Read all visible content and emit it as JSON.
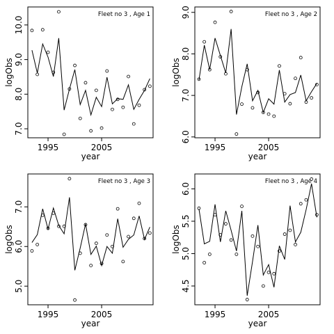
{
  "chart_data": [
    {
      "type": "line",
      "title": "Fleet no 3 , Age 1",
      "x_label": "year",
      "y_label": "logObs",
      "x": [
        1992,
        1993,
        1994,
        1995,
        1996,
        1997,
        1998,
        1999,
        2000,
        2001,
        2002,
        2003,
        2004,
        2005,
        2006,
        2007,
        2008,
        2009,
        2010,
        2011,
        2012,
        2013,
        2014
      ],
      "series": [
        {
          "mode": "points",
          "color": "#000000",
          "values": [
            9.84,
            8.57,
            9.86,
            9.21,
            8.63,
            10.38,
            6.84,
            8.15,
            8.83,
            7.3,
            8.33,
            6.94,
            8.11,
            7.02,
            8.67,
            7.56,
            7.85,
            7.62,
            8.51,
            7.14,
            7.68,
            8.13,
            8.23
          ]
        },
        {
          "mode": "line",
          "color": "#000000",
          "values": [
            9.27,
            8.61,
            9.45,
            9.07,
            8.51,
            9.62,
            7.54,
            8.15,
            8.71,
            7.7,
            8.11,
            7.4,
            7.91,
            7.64,
            8.49,
            7.72,
            7.87,
            7.85,
            8.27,
            7.56,
            7.85,
            8.11,
            8.45
          ]
        }
      ],
      "xlim": [
        1991.23,
        2014.6
      ],
      "xticks": [
        1995,
        2005
      ],
      "ylim": [
        6.74,
        10.52
      ],
      "yticks": [
        {
          "value": 7,
          "label": "7.0"
        },
        {
          "value": 8,
          "label": "8.0"
        },
        {
          "value": 9,
          "label": "9.0"
        },
        {
          "value": 10,
          "label": "10.0"
        }
      ]
    },
    {
      "type": "line",
      "title": "Fleet no 3 , Age 2",
      "x_label": "year",
      "y_label": "logObs",
      "x": [
        1992,
        1993,
        1994,
        1995,
        1996,
        1997,
        1998,
        1999,
        2000,
        2001,
        2002,
        2003,
        2004,
        2005,
        2006,
        2007,
        2008,
        2009,
        2010,
        2011,
        2012,
        2013,
        2014
      ],
      "series": [
        {
          "mode": "points",
          "color": "#000000",
          "values": [
            7.39,
            8.29,
            7.62,
            8.76,
            7.93,
            7.52,
            9.02,
            6.07,
            6.79,
            7.62,
            6.7,
            7.07,
            6.59,
            6.55,
            6.5,
            7.71,
            7.04,
            6.8,
            7.41,
            7.91,
            6.84,
            6.94,
            7.26
          ]
        },
        {
          "mode": "line",
          "color": "#000000",
          "values": [
            7.37,
            8.21,
            7.62,
            8.38,
            7.96,
            7.54,
            8.6,
            6.54,
            7.21,
            7.76,
            6.87,
            7.12,
            6.59,
            6.92,
            6.79,
            7.61,
            6.84,
            7.02,
            7.07,
            7.49,
            6.87,
            7.09,
            7.29
          ]
        }
      ],
      "xlim": [
        1991.23,
        2014.6
      ],
      "xticks": [
        1995,
        2005
      ],
      "ylim": [
        5.98,
        9.13
      ],
      "yticks": [
        {
          "value": 6,
          "label": "6.0"
        },
        {
          "value": 7,
          "label": "7.0"
        },
        {
          "value": 8,
          "label": "8.0"
        },
        {
          "value": 9,
          "label": "9.0"
        }
      ]
    },
    {
      "type": "line",
      "title": "Fleet no 3 , Age 3",
      "x_label": "year",
      "y_label": "logObs",
      "x": [
        1992,
        1993,
        1994,
        1995,
        1996,
        1997,
        1998,
        1999,
        2000,
        2001,
        2002,
        2003,
        2004,
        2005,
        2006,
        2007,
        2008,
        2009,
        2010,
        2011,
        2012,
        2013,
        2014
      ],
      "series": [
        {
          "mode": "points",
          "color": "#000000",
          "values": [
            5.89,
            6.05,
            6.79,
            6.46,
            6.84,
            6.51,
            6.51,
            7.71,
            4.65,
            5.83,
            6.55,
            5.52,
            6.08,
            5.57,
            6.29,
            6.0,
            6.95,
            5.62,
            6.25,
            6.71,
            7.09,
            6.2,
            6.34
          ]
        },
        {
          "mode": "line",
          "color": "#000000",
          "values": [
            6.1,
            6.3,
            6.95,
            6.44,
            6.97,
            6.53,
            6.32,
            7.24,
            5.4,
            5.96,
            6.57,
            5.8,
            6.01,
            5.52,
            6.0,
            5.83,
            6.7,
            5.98,
            6.18,
            6.29,
            6.77,
            6.18,
            6.49
          ]
        }
      ],
      "xlim": [
        1991.23,
        2014.6
      ],
      "xticks": [
        1995,
        2005
      ],
      "ylim": [
        4.53,
        7.83
      ],
      "yticks": [
        {
          "value": 5,
          "label": "5.0"
        },
        {
          "value": 6,
          "label": "6.0"
        },
        {
          "value": 7,
          "label": "7.0"
        }
      ]
    },
    {
      "type": "line",
      "title": "Fleet no 3 , Age 4",
      "x_label": "year",
      "y_label": "logObs",
      "x": [
        1992,
        1993,
        1994,
        1995,
        1996,
        1997,
        1998,
        1999,
        2000,
        2001,
        2002,
        2003,
        2004,
        2005,
        2006,
        2007,
        2008,
        2009,
        2010,
        2011,
        2012,
        2013,
        2014
      ],
      "series": [
        {
          "mode": "points",
          "color": "#000000",
          "values": [
            5.7,
            4.86,
            4.99,
            5.6,
            5.29,
            5.46,
            5.21,
            4.99,
            5.73,
            4.29,
            5.27,
            5.11,
            4.5,
            4.71,
            4.69,
            5.04,
            5.3,
            5.36,
            5.14,
            5.77,
            5.83,
            6.15,
            5.6
          ]
        },
        {
          "mode": "line",
          "color": "#000000",
          "values": [
            5.69,
            5.15,
            5.19,
            5.76,
            5.18,
            5.66,
            5.36,
            5.04,
            5.66,
            4.35,
            4.88,
            5.44,
            4.67,
            4.83,
            4.48,
            5.12,
            4.91,
            5.74,
            5.18,
            5.33,
            5.68,
            6.08,
            5.56
          ]
        }
      ],
      "xlim": [
        1991.23,
        2014.6
      ],
      "xticks": [
        1995,
        2005
      ],
      "ylim": [
        4.21,
        6.23
      ],
      "yticks": [
        {
          "value": 4.5,
          "label": "4.5"
        },
        {
          "value": 5,
          "label": "5.0"
        },
        {
          "value": 5.5,
          "label": "5.5"
        },
        {
          "value": 6,
          "label": "6.0"
        }
      ]
    }
  ]
}
